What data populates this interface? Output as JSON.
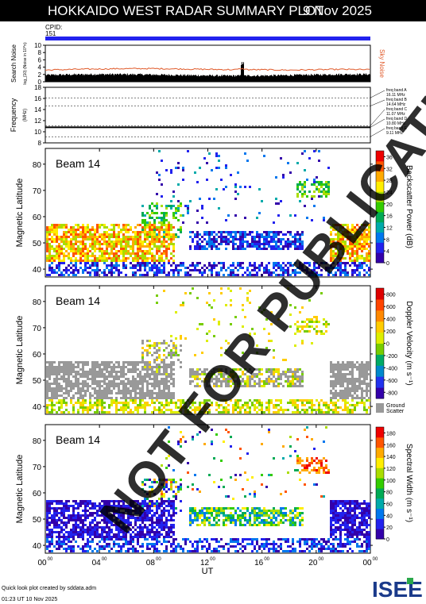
{
  "header": {
    "title": "HOKKAIDO WEST RADAR SUMMARY PLOT",
    "date": "9 Nov 2025"
  },
  "cpid": {
    "label": "CPID:",
    "value": "151"
  },
  "colors": {
    "cpid_bar": "#2222ee",
    "noise_sky": "#e05a2a",
    "search_noise": "#000000",
    "ground_scatter": "#999999"
  },
  "watermark": "NOT FOR PUBLICATION",
  "footer": {
    "credit": "Quick look plot created by sddata.adm",
    "timestamp": "01:23 UT 10 Nov 2025"
  },
  "logo": {
    "text": "ISEE"
  },
  "chart_data": [
    {
      "type": "line",
      "panel": "noise",
      "ylabel": "Search Noise",
      "ylabel_sub": "log_{10} (Noise in 10^n)",
      "right_label": "Sky Noise",
      "ylim": [
        0,
        10
      ],
      "yticks": [
        "0",
        "2",
        "4",
        "6",
        "8",
        "10"
      ],
      "x": [
        0,
        2,
        4,
        6,
        8,
        10,
        12,
        14,
        14.5,
        15,
        16,
        18,
        20,
        22,
        24
      ],
      "series": [
        {
          "name": "Sky Noise",
          "values": [
            3.2,
            3.4,
            3.5,
            3.6,
            3.6,
            3.5,
            3.4,
            3.3,
            3.6,
            3.3,
            3.3,
            3.2,
            3.3,
            3.4,
            3.3
          ]
        },
        {
          "name": "Search Noise",
          "values": [
            1.6,
            1.6,
            1.7,
            1.8,
            1.8,
            1.7,
            1.7,
            1.7,
            4.5,
            1.8,
            1.8,
            1.7,
            1.7,
            1.8,
            1.7
          ]
        }
      ]
    },
    {
      "type": "line",
      "panel": "frequency",
      "ylabel": "Frequency",
      "ylabel_sub": "(MHz)",
      "ylim": [
        8,
        18
      ],
      "yticks": [
        "8",
        "10",
        "12",
        "14",
        "16",
        "18"
      ],
      "bands": [
        {
          "name": "freq band A",
          "value": "16.11 MHz",
          "freq": 16.11
        },
        {
          "name": "freq band B",
          "value": "14.64 MHz",
          "freq": 14.64
        },
        {
          "name": "freq band C",
          "value": "11.07 MHz",
          "freq": 11.07
        },
        {
          "name": "freq band D",
          "value": "10.80 MHz",
          "freq": 10.8
        },
        {
          "name": "freq band E",
          "value": "9.11 MHz",
          "freq": 9.11
        }
      ],
      "operating_freq": 10.8
    },
    {
      "type": "heatmap",
      "panel": "power",
      "beam_label": "Beam 14",
      "ylabel": "Magnetic Latitude",
      "ylim": [
        37,
        86
      ],
      "yticks": [
        "40",
        "50",
        "60",
        "70",
        "80"
      ],
      "colorbar_label": "Backscatter Power (dB)",
      "colorbar_ticks": [
        "0",
        "4",
        "8",
        "12",
        "16",
        "20",
        "24",
        "28",
        "32",
        "36"
      ],
      "colorbar_range": [
        0,
        38
      ]
    },
    {
      "type": "heatmap",
      "panel": "velocity",
      "beam_label": "Beam 14",
      "ylabel": "Magnetic Latitude",
      "ylim": [
        37,
        86
      ],
      "yticks": [
        "40",
        "50",
        "60",
        "70",
        "80"
      ],
      "colorbar_label": "Doppler Velocity (m s⁻¹)",
      "colorbar_ticks": [
        "-800",
        "-600",
        "-400",
        "-200",
        "0",
        "200",
        "400",
        "600",
        "800"
      ],
      "colorbar_range": [
        -900,
        900
      ],
      "ground_scatter_label": [
        "Ground",
        "Scatter"
      ]
    },
    {
      "type": "heatmap",
      "panel": "width",
      "beam_label": "Beam 14",
      "ylabel": "Magnetic Latitude",
      "ylim": [
        37,
        86
      ],
      "yticks": [
        "40",
        "50",
        "60",
        "70",
        "80"
      ],
      "colorbar_label": "Spectral Width (m s⁻¹)",
      "colorbar_ticks": [
        "0",
        "20",
        "40",
        "60",
        "80",
        "100",
        "120",
        "140",
        "160",
        "180"
      ],
      "colorbar_range": [
        0,
        190
      ],
      "xlabel": "UT",
      "xticks": [
        "00",
        "04",
        "08",
        "12",
        "16",
        "20",
        "00"
      ],
      "xtick_sup": "00",
      "xlim": [
        0,
        24
      ]
    }
  ]
}
